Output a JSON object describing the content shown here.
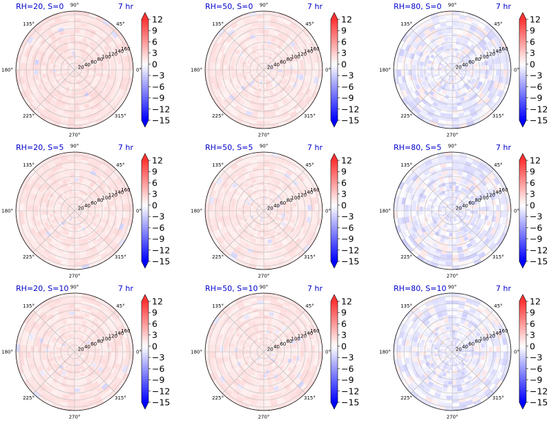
{
  "figure": {
    "colormap": [
      "#0000ff",
      "#ffffff",
      "#ff0000"
    ],
    "time_label": "7 hr"
  },
  "chart_data": [
    {
      "type": "heatmap",
      "projection": "polar",
      "title": "RH=20, S=0",
      "time": "7 hr",
      "rh": 20,
      "s": 0,
      "theta_ticks": [
        "0°",
        "45°",
        "90°",
        "135°",
        "180°",
        "225°",
        "270°",
        "315°"
      ],
      "r_ticks": [
        "20",
        "40",
        "60",
        "80",
        "100",
        "120",
        "140",
        "160"
      ],
      "rlim": [
        0,
        170
      ],
      "colorbar": {
        "min": -15,
        "max": 12,
        "ticks": [
          "12",
          "9",
          "6",
          "3",
          "0",
          "−3",
          "−6",
          "−9",
          "−12",
          "−15"
        ]
      },
      "field": {
        "base": 1.6,
        "noise": 0.7,
        "negative_fraction": 0.02
      }
    },
    {
      "type": "heatmap",
      "projection": "polar",
      "title": "RH=50, S=0",
      "time": "7 hr",
      "rh": 50,
      "s": 0,
      "theta_ticks": [
        "0°",
        "45°",
        "90°",
        "135°",
        "180°",
        "225°",
        "270°",
        "315°"
      ],
      "r_ticks": [
        "20",
        "40",
        "60",
        "80",
        "100",
        "120",
        "140",
        "160"
      ],
      "rlim": [
        0,
        170
      ],
      "colorbar": {
        "min": -15,
        "max": 12,
        "ticks": [
          "12",
          "9",
          "6",
          "3",
          "0",
          "−3",
          "−6",
          "−9",
          "−12",
          "−15"
        ]
      },
      "field": {
        "base": 1.4,
        "noise": 0.7,
        "negative_fraction": 0.04
      }
    },
    {
      "type": "heatmap",
      "projection": "polar",
      "title": "RH=80, S=0",
      "time": "7 hr",
      "rh": 80,
      "s": 0,
      "theta_ticks": [
        "0°",
        "45°",
        "90°",
        "135°",
        "180°",
        "225°",
        "270°",
        "315°"
      ],
      "r_ticks": [
        "20",
        "40",
        "60",
        "80",
        "100",
        "120",
        "140",
        "160"
      ],
      "rlim": [
        0,
        170
      ],
      "colorbar": {
        "min": -15,
        "max": 12,
        "ticks": [
          "12",
          "9",
          "6",
          "3",
          "0",
          "−3",
          "−6",
          "−9",
          "−12",
          "−15"
        ]
      },
      "field": {
        "base": 0.0,
        "noise": 1.6,
        "negative_fraction": 0.5
      }
    },
    {
      "type": "heatmap",
      "projection": "polar",
      "title": "RH=20, S=5",
      "time": "7 hr",
      "rh": 20,
      "s": 5,
      "theta_ticks": [
        "0°",
        "45°",
        "90°",
        "135°",
        "180°",
        "225°",
        "270°",
        "315°"
      ],
      "r_ticks": [
        "20",
        "40",
        "60",
        "80",
        "100",
        "120",
        "140",
        "160"
      ],
      "rlim": [
        0,
        170
      ],
      "colorbar": {
        "min": -15,
        "max": 12,
        "ticks": [
          "12",
          "9",
          "6",
          "3",
          "0",
          "−3",
          "−6",
          "−9",
          "−12",
          "−15"
        ]
      },
      "field": {
        "base": 1.5,
        "noise": 0.7,
        "negative_fraction": 0.02
      }
    },
    {
      "type": "heatmap",
      "projection": "polar",
      "title": "RH=50, S=5",
      "time": "7 hr",
      "rh": 50,
      "s": 5,
      "theta_ticks": [
        "0°",
        "45°",
        "90°",
        "135°",
        "180°",
        "225°",
        "270°",
        "315°"
      ],
      "r_ticks": [
        "20",
        "40",
        "60",
        "80",
        "100",
        "120",
        "140",
        "160"
      ],
      "rlim": [
        0,
        170
      ],
      "colorbar": {
        "min": -15,
        "max": 12,
        "ticks": [
          "12",
          "9",
          "6",
          "3",
          "0",
          "−3",
          "−6",
          "−9",
          "−12",
          "−15"
        ]
      },
      "field": {
        "base": 1.4,
        "noise": 0.7,
        "negative_fraction": 0.04
      }
    },
    {
      "type": "heatmap",
      "projection": "polar",
      "title": "RH=80, S=5",
      "time": "7 hr",
      "rh": 80,
      "s": 5,
      "theta_ticks": [
        "0°",
        "45°",
        "90°",
        "135°",
        "180°",
        "225°",
        "270°",
        "315°"
      ],
      "r_ticks": [
        "20",
        "40",
        "60",
        "80",
        "100",
        "120",
        "140",
        "160"
      ],
      "rlim": [
        0,
        170
      ],
      "colorbar": {
        "min": -15,
        "max": 12,
        "ticks": [
          "12",
          "9",
          "6",
          "3",
          "0",
          "−3",
          "−6",
          "−9",
          "−12",
          "−15"
        ]
      },
      "field": {
        "base": 0.0,
        "noise": 1.6,
        "negative_fraction": 0.5
      }
    },
    {
      "type": "heatmap",
      "projection": "polar",
      "title": "RH=20, S=10",
      "time": "7 hr",
      "rh": 20,
      "s": 10,
      "theta_ticks": [
        "0°",
        "45°",
        "90°",
        "135°",
        "180°",
        "225°",
        "270°",
        "315°"
      ],
      "r_ticks": [
        "20",
        "40",
        "60",
        "80",
        "100",
        "120",
        "140",
        "160"
      ],
      "rlim": [
        0,
        170
      ],
      "colorbar": {
        "min": -15,
        "max": 12,
        "ticks": [
          "12",
          "9",
          "6",
          "3",
          "0",
          "−3",
          "−6",
          "−9",
          "−12",
          "−15"
        ]
      },
      "field": {
        "base": 1.5,
        "noise": 0.7,
        "negative_fraction": 0.02
      }
    },
    {
      "type": "heatmap",
      "projection": "polar",
      "title": "RH=50, S=10",
      "time": "7 hr",
      "rh": 50,
      "s": 10,
      "theta_ticks": [
        "0°",
        "45°",
        "90°",
        "135°",
        "180°",
        "225°",
        "270°",
        "315°"
      ],
      "r_ticks": [
        "20",
        "40",
        "60",
        "80",
        "100",
        "120",
        "140",
        "160"
      ],
      "rlim": [
        0,
        170
      ],
      "colorbar": {
        "min": -15,
        "max": 12,
        "ticks": [
          "12",
          "9",
          "6",
          "3",
          "0",
          "−3",
          "−6",
          "−9",
          "−12",
          "−15"
        ]
      },
      "field": {
        "base": 1.4,
        "noise": 0.7,
        "negative_fraction": 0.04
      }
    },
    {
      "type": "heatmap",
      "projection": "polar",
      "title": "RH=80, S=10",
      "time": "7 hr",
      "rh": 80,
      "s": 10,
      "theta_ticks": [
        "0°",
        "45°",
        "90°",
        "135°",
        "180°",
        "225°",
        "270°",
        "315°"
      ],
      "r_ticks": [
        "20",
        "40",
        "60",
        "80",
        "100",
        "120",
        "140",
        "160"
      ],
      "rlim": [
        0,
        170
      ],
      "colorbar": {
        "min": -15,
        "max": 12,
        "ticks": [
          "12",
          "9",
          "6",
          "3",
          "0",
          "−3",
          "−6",
          "−9",
          "−12",
          "−15"
        ]
      },
      "field": {
        "base": 0.0,
        "noise": 1.6,
        "negative_fraction": 0.5
      }
    }
  ]
}
